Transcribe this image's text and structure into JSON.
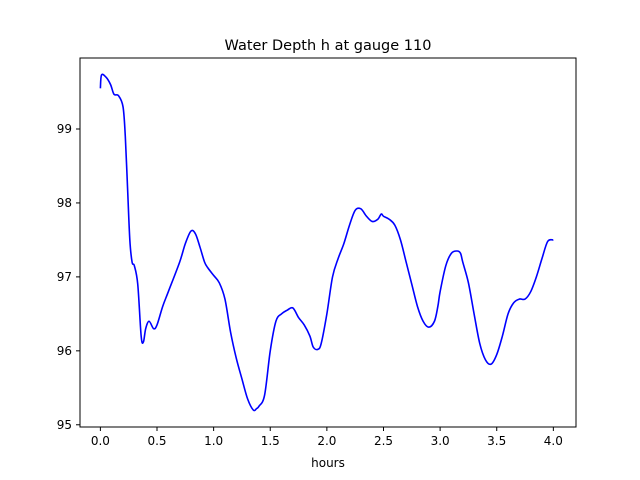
{
  "chart_data": {
    "type": "line",
    "title": "Water Depth h at gauge 110",
    "xlabel": "hours",
    "ylabel": "",
    "xlim": [
      -0.18,
      4.2
    ],
    "ylim": [
      94.97,
      99.96
    ],
    "xticks": [
      0.0,
      0.5,
      1.0,
      1.5,
      2.0,
      2.5,
      3.0,
      3.5,
      4.0
    ],
    "xtick_labels": [
      "0.0",
      "0.5",
      "1.0",
      "1.5",
      "2.0",
      "2.5",
      "3.0",
      "3.5",
      "4.0"
    ],
    "yticks": [
      95,
      96,
      97,
      98,
      99
    ],
    "ytick_labels": [
      "95",
      "96",
      "97",
      "98",
      "99"
    ],
    "grid": false,
    "series": [
      {
        "color": "#0000ff",
        "x": [
          0.0,
          0.01,
          0.05,
          0.09,
          0.12,
          0.16,
          0.2,
          0.22,
          0.24,
          0.26,
          0.28,
          0.3,
          0.33,
          0.36,
          0.38,
          0.4,
          0.43,
          0.47,
          0.5,
          0.55,
          0.6,
          0.7,
          0.75,
          0.8,
          0.84,
          0.88,
          0.92,
          0.95,
          1.0,
          1.05,
          1.1,
          1.15,
          1.2,
          1.25,
          1.3,
          1.35,
          1.38,
          1.4,
          1.45,
          1.5,
          1.55,
          1.6,
          1.65,
          1.7,
          1.75,
          1.8,
          1.85,
          1.88,
          1.92,
          1.95,
          2.0,
          2.05,
          2.1,
          2.15,
          2.2,
          2.25,
          2.3,
          2.35,
          2.4,
          2.45,
          2.48,
          2.5,
          2.55,
          2.6,
          2.65,
          2.7,
          2.75,
          2.8,
          2.85,
          2.9,
          2.95,
          2.98,
          3.0,
          3.05,
          3.1,
          3.15,
          3.18,
          3.2,
          3.25,
          3.3,
          3.35,
          3.4,
          3.45,
          3.5,
          3.55,
          3.6,
          3.65,
          3.7,
          3.75,
          3.8,
          3.85,
          3.9,
          3.95,
          4.0
        ],
        "values": [
          99.55,
          99.73,
          99.7,
          99.6,
          99.47,
          99.45,
          99.3,
          98.9,
          98.2,
          97.5,
          97.2,
          97.15,
          96.9,
          96.2,
          96.12,
          96.3,
          96.4,
          96.3,
          96.35,
          96.6,
          96.8,
          97.2,
          97.45,
          97.62,
          97.58,
          97.4,
          97.2,
          97.12,
          97.02,
          96.92,
          96.7,
          96.25,
          95.9,
          95.62,
          95.35,
          95.2,
          95.22,
          95.25,
          95.4,
          96.0,
          96.4,
          96.5,
          96.55,
          96.58,
          96.45,
          96.35,
          96.2,
          96.05,
          96.02,
          96.1,
          96.5,
          97.0,
          97.25,
          97.45,
          97.7,
          97.9,
          97.92,
          97.82,
          97.75,
          97.78,
          97.85,
          97.82,
          97.78,
          97.7,
          97.5,
          97.2,
          96.9,
          96.6,
          96.4,
          96.32,
          96.4,
          96.6,
          96.8,
          97.15,
          97.32,
          97.35,
          97.32,
          97.2,
          96.92,
          96.5,
          96.1,
          95.88,
          95.82,
          95.95,
          96.2,
          96.5,
          96.65,
          96.7,
          96.7,
          96.8,
          97.0,
          97.25,
          97.48,
          97.5
        ]
      }
    ]
  }
}
